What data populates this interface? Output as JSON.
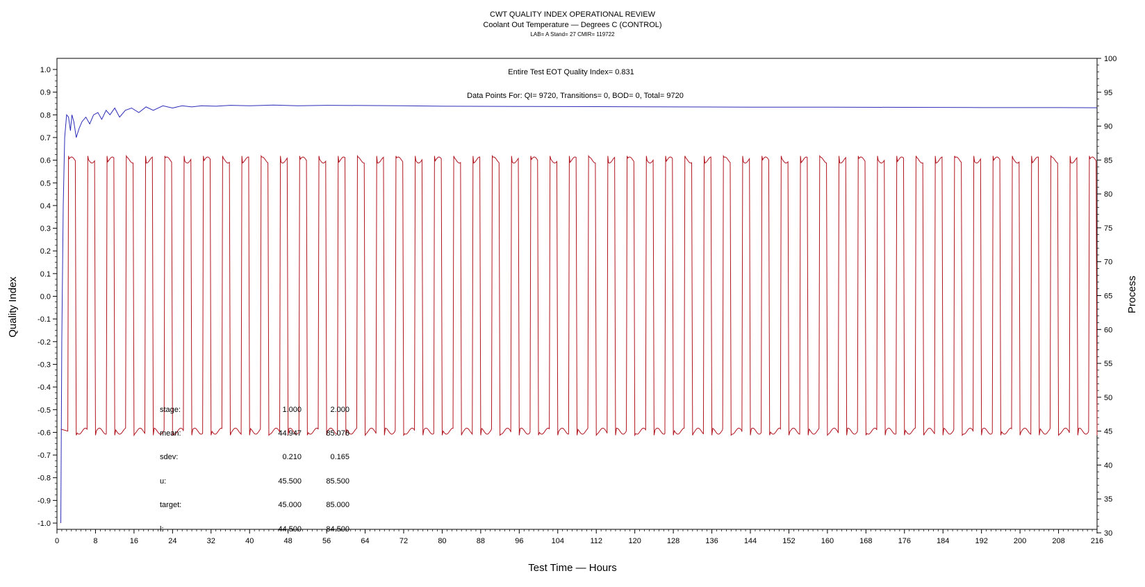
{
  "chart_data": {
    "type": "line",
    "title": "CWT QUALITY INDEX OPERATIONAL REVIEW",
    "subtitle": "Coolant Out Temperature — Degrees C (CONTROL)",
    "subtitle2": "LAB= A Stand= 27 CMIR= 119722",
    "xlabel": "Test Time — Hours",
    "ylabel": "Quality Index",
    "y2label": "Process",
    "xlim": [
      0,
      216
    ],
    "ylim": [
      -1.0,
      1.0
    ],
    "y2lim": [
      30,
      100
    ],
    "x_ticks": [
      0,
      8,
      16,
      24,
      32,
      40,
      48,
      56,
      64,
      72,
      80,
      88,
      96,
      104,
      112,
      120,
      128,
      136,
      144,
      152,
      160,
      168,
      176,
      184,
      192,
      200,
      208,
      216
    ],
    "y_ticks": [
      "-1.0",
      "-0.9",
      "-0.8",
      "-0.7",
      "-0.6",
      "-0.5",
      "-0.4",
      "-0.3",
      "-0.2",
      "-0.1",
      "0.0",
      "0.1",
      "0.2",
      "0.3",
      "0.4",
      "0.5",
      "0.6",
      "0.7",
      "0.8",
      "0.9",
      "1.0"
    ],
    "y2_ticks": [
      30,
      35,
      40,
      45,
      50,
      55,
      60,
      65,
      70,
      75,
      80,
      85,
      90,
      95,
      100
    ],
    "annotations": {
      "eot_qi": "Entire Test EOT Quality Index=   0.831",
      "data_points": "Data Points For: QI=  9720, Transitions=     0, BOD=     0, Total=  9720"
    },
    "series": [
      {
        "axis": "left",
        "color": "#2b2bb8",
        "x": [
          0.8,
          1.0,
          1.3,
          1.6,
          2.0,
          2.4,
          2.8,
          3.1,
          3.5,
          4.0,
          4.6,
          5.2,
          6.0,
          6.8,
          7.6,
          8.5,
          9.3,
          10.2,
          11.0,
          12.0,
          13.0,
          14.2,
          15.5,
          17.0,
          18.5,
          20.0,
          22.0,
          24.0,
          26.0,
          28.0,
          30.0,
          33.0,
          36.0,
          40.0,
          45.0,
          50.0,
          56.0,
          64.0,
          72.0,
          80.0,
          96.0,
          112.0,
          128.0,
          144.0,
          160.0,
          176.0,
          192.0,
          208.0,
          216.0
        ],
        "y": [
          -1.0,
          -0.2,
          0.4,
          0.7,
          0.8,
          0.79,
          0.73,
          0.8,
          0.77,
          0.7,
          0.74,
          0.77,
          0.79,
          0.76,
          0.8,
          0.81,
          0.78,
          0.82,
          0.8,
          0.83,
          0.79,
          0.82,
          0.83,
          0.81,
          0.835,
          0.82,
          0.84,
          0.83,
          0.84,
          0.835,
          0.84,
          0.838,
          0.842,
          0.84,
          0.843,
          0.84,
          0.842,
          0.841,
          0.84,
          0.838,
          0.837,
          0.836,
          0.835,
          0.834,
          0.834,
          0.833,
          0.832,
          0.832,
          0.831
        ]
      },
      {
        "axis": "right",
        "color": "#b0141e",
        "low": 45,
        "high": 85,
        "period_hours": 4,
        "high_duration_hours": 1.6,
        "first_rise_hours": 2.3,
        "x_start": 0.8,
        "x_end": 216
      }
    ],
    "stats": {
      "rows": [
        {
          "label": "stage:",
          "v1": "1.000",
          "v2": "2.000"
        },
        {
          "label": "mean:",
          "v1": "44.947",
          "v2": "85.076"
        },
        {
          "label": "sdev:",
          "v1": "0.210",
          "v2": "0.165"
        },
        {
          "label": "u:",
          "v1": "45.500",
          "v2": "85.500"
        },
        {
          "label": "target:",
          "v1": "45.000",
          "v2": "85.000"
        },
        {
          "label": "l:",
          "v1": "44.500",
          "v2": "84.500"
        }
      ]
    },
    "legend": "none",
    "grid": false
  }
}
